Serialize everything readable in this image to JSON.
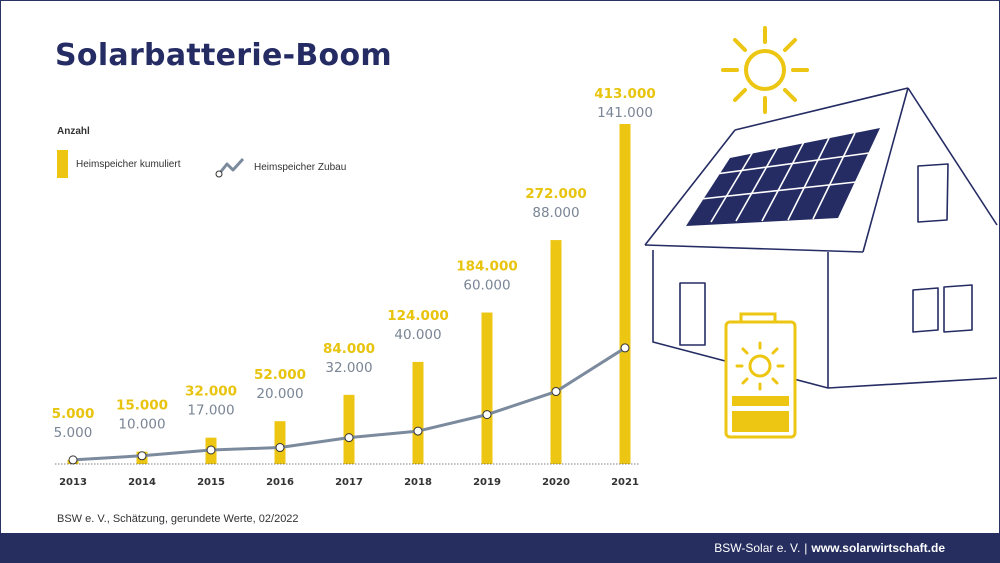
{
  "title": "Solarbatterie-Boom",
  "y_unit": "Anzahl",
  "legend": {
    "bar_label": "Heimspeicher kumuliert",
    "line_label": "Heimspeicher Zubau"
  },
  "source": "BSW e. V., Schätzung, gerundete Werte, 02/2022",
  "footer": {
    "org": "BSW-Solar e. V.",
    "separator": "|",
    "url": "www.solarwirtschaft.de"
  },
  "colors": {
    "bar": "#ecc612",
    "line": "#7c8a9e",
    "title": "#252c63",
    "footer": "#262e5f",
    "cumulative_label": "#e8c40f",
    "addition_label": "#7a8595"
  },
  "icons": [
    "sun-icon",
    "house-icon",
    "solar-panel-icon",
    "battery-icon"
  ],
  "chart_data": {
    "type": "bar",
    "categories": [
      "2013",
      "2014",
      "2015",
      "2016",
      "2017",
      "2018",
      "2019",
      "2020",
      "2021"
    ],
    "series": [
      {
        "name": "Heimspeicher kumuliert",
        "type": "bar",
        "values": [
          5000,
          15000,
          32000,
          52000,
          84000,
          124000,
          184000,
          272000,
          413000
        ],
        "labels": [
          "5.000",
          "15.000",
          "32.000",
          "52.000",
          "84.000",
          "124.000",
          "184.000",
          "272.000",
          "413.000"
        ]
      },
      {
        "name": "Heimspeicher Zubau",
        "type": "line",
        "values": [
          5000,
          10000,
          17000,
          20000,
          32000,
          40000,
          60000,
          88000,
          141000
        ],
        "labels": [
          "5.000",
          "10.000",
          "17.000",
          "20.000",
          "32.000",
          "40.000",
          "60.000",
          "88.000",
          "141.000"
        ]
      }
    ],
    "title": "Solarbatterie-Boom",
    "ylabel": "Anzahl",
    "xlabel": "",
    "grid": false,
    "legend_position": "top-left"
  }
}
